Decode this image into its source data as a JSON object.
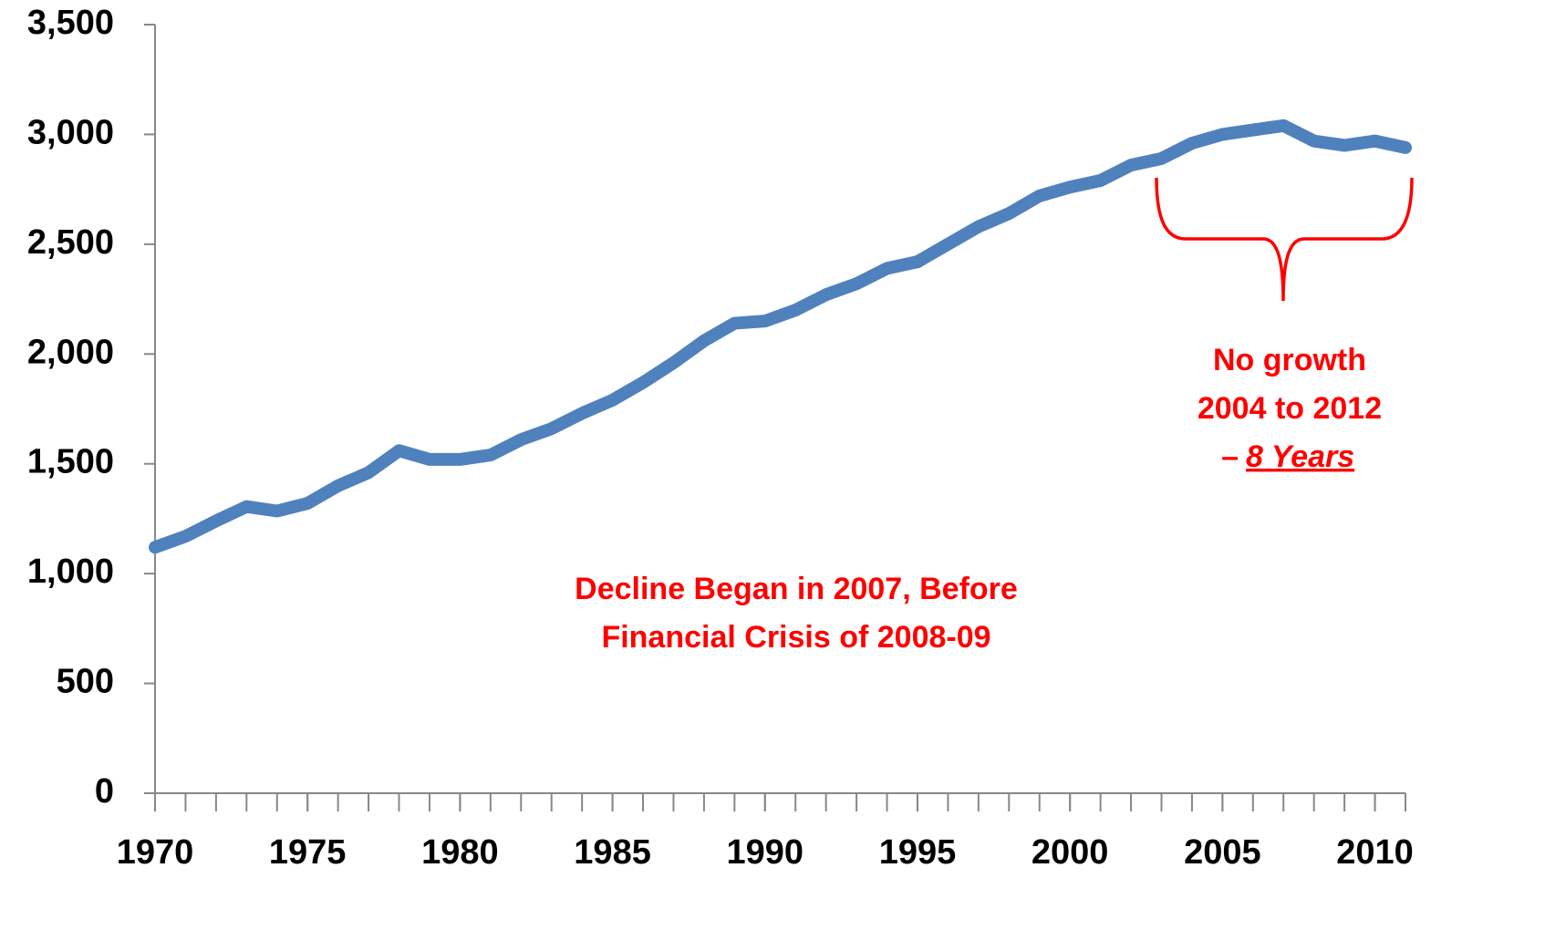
{
  "chart_data": {
    "type": "line",
    "x": [
      1970,
      1971,
      1972,
      1973,
      1974,
      1975,
      1976,
      1977,
      1978,
      1979,
      1980,
      1981,
      1982,
      1983,
      1984,
      1985,
      1986,
      1987,
      1988,
      1989,
      1990,
      1991,
      1992,
      1993,
      1994,
      1995,
      1996,
      1997,
      1998,
      1999,
      2000,
      2001,
      2002,
      2003,
      2004,
      2005,
      2006,
      2007,
      2008,
      2009,
      2010,
      2011
    ],
    "series": [
      {
        "color": "#4f81bd",
        "values": [
          1120,
          1170,
          1240,
          1305,
          1285,
          1320,
          1400,
          1460,
          1560,
          1520,
          1520,
          1540,
          1610,
          1660,
          1730,
          1790,
          1870,
          1960,
          2060,
          2140,
          2150,
          2200,
          2270,
          2320,
          2390,
          2420,
          2500,
          2580,
          2640,
          2720,
          2760,
          2790,
          2860,
          2890,
          2960,
          3000,
          3020,
          3040,
          2970,
          2950,
          2970,
          2940
        ]
      }
    ],
    "xlim": [
      1970,
      2011
    ],
    "xticks": [
      1970,
      1975,
      1980,
      1985,
      1990,
      1995,
      2000,
      2005,
      2010
    ],
    "xminorticks": [
      1971,
      1972,
      1973,
      1974,
      1975,
      1976,
      1977,
      1978,
      1979,
      1980,
      1981,
      1982,
      1983,
      1984,
      1985,
      1986,
      1987,
      1988,
      1989,
      1990,
      1991,
      1992,
      1993,
      1994,
      1995,
      1996,
      1997,
      1998,
      1999,
      2000,
      2001,
      2002,
      2003,
      2004,
      2005,
      2006,
      2007,
      2008,
      2009,
      2010,
      2011
    ],
    "ylim": [
      0,
      3500
    ],
    "yticks": [
      0,
      500,
      {
        "value": 1000,
        "label": "1,000"
      },
      {
        "value": 1500,
        "label": "1,500"
      },
      {
        "value": 2000,
        "label": "2,000"
      },
      {
        "value": 2500,
        "label": "2,500"
      },
      {
        "value": 3000,
        "label": "3,000"
      },
      {
        "value": 3500,
        "label": "3,500"
      }
    ],
    "annotations": {
      "decline": [
        "Decline Began in  2007, Before",
        "Financial Crisis of 2008-09"
      ],
      "no_growth": [
        "No growth",
        "2004 to 2012"
      ],
      "dash": "–",
      "years": "8 Years",
      "color": "#ff0000"
    }
  }
}
